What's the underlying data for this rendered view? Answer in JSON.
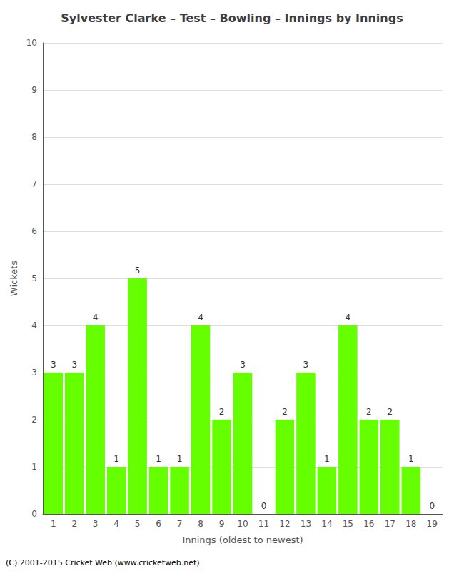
{
  "chart_data": {
    "type": "bar",
    "title": "Sylvester Clarke – Test – Bowling – Innings by Innings",
    "xlabel": "Innings (oldest to newest)",
    "ylabel": "Wickets",
    "categories": [
      "1",
      "2",
      "3",
      "4",
      "5",
      "6",
      "7",
      "8",
      "9",
      "10",
      "11",
      "12",
      "13",
      "14",
      "15",
      "16",
      "17",
      "18",
      "19"
    ],
    "values": [
      3,
      3,
      4,
      1,
      5,
      1,
      1,
      4,
      2,
      3,
      0,
      2,
      3,
      1,
      4,
      2,
      2,
      1,
      0
    ],
    "color": "#66ff00",
    "ylim": [
      0,
      10
    ],
    "yticks": [
      0,
      1,
      2,
      3,
      4,
      5,
      6,
      7,
      8,
      9,
      10
    ],
    "grid": true,
    "data_labels": true,
    "annotations": [
      "(C) 2001-2015 Cricket Web (www.cricketweb.net)"
    ]
  }
}
